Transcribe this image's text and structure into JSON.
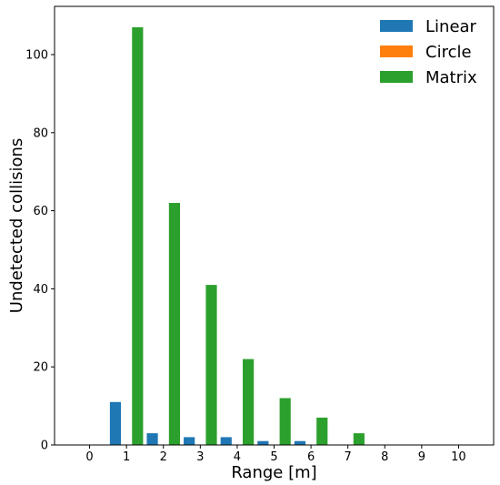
{
  "chart_data": {
    "type": "bar",
    "title": "",
    "xlabel": "Range [m]",
    "ylabel": "Undetected collisions",
    "categories": [
      "0",
      "1",
      "2",
      "3",
      "4",
      "5",
      "6",
      "7",
      "8",
      "9",
      "10"
    ],
    "series": [
      {
        "name": "Linear",
        "color": "#1f77b4",
        "values": [
          0,
          11,
          3,
          2,
          2,
          1,
          1,
          0,
          0,
          0,
          0
        ]
      },
      {
        "name": "Circle",
        "color": "#ff7f0e",
        "values": [
          0,
          0,
          0,
          0,
          0,
          0,
          0,
          0,
          0,
          0,
          0
        ]
      },
      {
        "name": "Matrix",
        "color": "#2ca02c",
        "values": [
          0,
          107,
          62,
          41,
          22,
          12,
          7,
          3,
          0,
          0,
          0
        ]
      }
    ],
    "xlim": [
      -0.95,
      10.95
    ],
    "ylim": [
      0,
      112.35
    ],
    "yticks": [
      0,
      20,
      40,
      60,
      80,
      100
    ],
    "grid": false,
    "legend_position": "top-right"
  }
}
